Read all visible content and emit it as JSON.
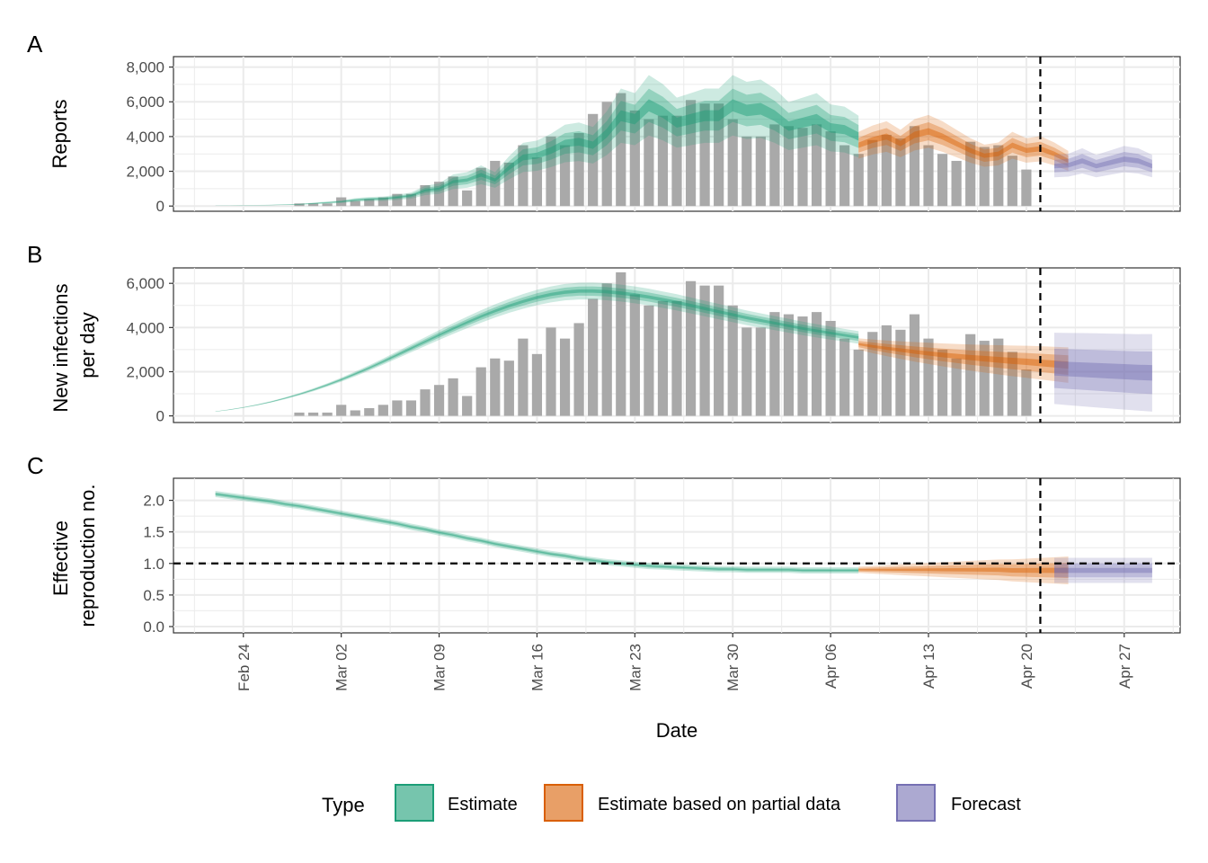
{
  "figure": {
    "xlabel": "Date",
    "date_range": [
      "2020-02-19",
      "2020-05-01"
    ],
    "x_ticks": [
      {
        "date": "2020-02-24",
        "label": "Feb 24"
      },
      {
        "date": "2020-03-02",
        "label": "Mar 02"
      },
      {
        "date": "2020-03-09",
        "label": "Mar 09"
      },
      {
        "date": "2020-03-16",
        "label": "Mar 16"
      },
      {
        "date": "2020-03-23",
        "label": "Mar 23"
      },
      {
        "date": "2020-03-30",
        "label": "Mar 30"
      },
      {
        "date": "2020-04-06",
        "label": "Apr 06"
      },
      {
        "date": "2020-04-13",
        "label": "Apr 13"
      },
      {
        "date": "2020-04-20",
        "label": "Apr 20"
      },
      {
        "date": "2020-04-27",
        "label": "Apr 27"
      }
    ],
    "vline_date": "2020-04-21",
    "colors": {
      "estimate": "#1b9e77",
      "partial": "#d95f02",
      "forecast": "#7570b3",
      "bars": "#a9a9a9",
      "grid": "#ebebeb"
    },
    "legend": {
      "title": "Type",
      "items": [
        {
          "key": "estimate",
          "label": "Estimate"
        },
        {
          "key": "partial",
          "label": "Estimate based on partial data"
        },
        {
          "key": "forecast",
          "label": "Forecast"
        }
      ]
    }
  },
  "chart_data": [
    {
      "panel": "A",
      "type": "bar+ribbon",
      "ylabel": [
        "Reports"
      ],
      "ylim": [
        -300,
        8600
      ],
      "yticks": [
        0,
        2000,
        4000,
        6000,
        8000
      ],
      "ytick_labels": [
        "0",
        "2,000",
        "4,000",
        "6,000",
        "8,000"
      ],
      "bars": {
        "start_date": "2020-02-28",
        "values": [
          150,
          150,
          150,
          500,
          300,
          400,
          500,
          700,
          700,
          1200,
          1400,
          1700,
          900,
          2200,
          2600,
          2500,
          3500,
          2800,
          4000,
          3500,
          4200,
          5300,
          6000,
          6500,
          5500,
          5000,
          5200,
          5200,
          6100,
          5900,
          5900,
          5000,
          4000,
          4000,
          4700,
          4600,
          4500,
          4700,
          4300,
          3500,
          3000,
          3800,
          4100,
          3900,
          4600,
          3500,
          3000,
          2600,
          3700,
          3400,
          3500,
          2900,
          2100
        ]
      },
      "series": [
        {
          "name": "Estimate",
          "type": "estimate",
          "start_date": "2020-02-22",
          "median": [
            20,
            30,
            40,
            50,
            60,
            80,
            100,
            150,
            200,
            250,
            350,
            400,
            420,
            500,
            600,
            900,
            1000,
            1400,
            1500,
            1800,
            1500,
            2200,
            2800,
            2900,
            3200,
            3600,
            3700,
            3500,
            4200,
            5200,
            5000,
            5800,
            5400,
            4800,
            5000,
            5200,
            5200,
            5800,
            5500,
            5600,
            5200,
            4600,
            4800,
            5000,
            4500,
            4400,
            4000
          ],
          "spread": 0.3
        },
        {
          "name": "Estimate based on partial data",
          "type": "partial",
          "start_date": "2020-04-08",
          "median": [
            3500,
            3800,
            4000,
            3600,
            4100,
            4300,
            4000,
            3600,
            3200,
            2900,
            3000,
            3500,
            3200,
            3300,
            3000,
            2600
          ],
          "spread": 0.22
        },
        {
          "name": "Forecast",
          "type": "forecast",
          "start_date": "2020-04-22",
          "median": [
            2300,
            2350,
            2600,
            2300,
            2500,
            2700,
            2600,
            2300
          ],
          "spread": 0.28
        }
      ]
    },
    {
      "panel": "B",
      "type": "bar+ribbon",
      "ylabel": [
        "New infections",
        "per day"
      ],
      "ylim": [
        -300,
        6700
      ],
      "yticks": [
        0,
        2000,
        4000,
        6000
      ],
      "ytick_labels": [
        "0",
        "2,000",
        "4,000",
        "6,000"
      ],
      "bars": {
        "start_date": "2020-02-28",
        "values": [
          150,
          150,
          150,
          500,
          250,
          350,
          500,
          700,
          700,
          1200,
          1400,
          1700,
          900,
          2200,
          2600,
          2500,
          3500,
          2800,
          4000,
          3500,
          4200,
          5300,
          6000,
          6500,
          5500,
          5000,
          5200,
          5200,
          6100,
          5900,
          5900,
          5000,
          4000,
          4000,
          4700,
          4600,
          4500,
          4700,
          4300,
          3500,
          3000,
          3800,
          4100,
          3900,
          4600,
          3500,
          3000,
          2600,
          3700,
          3400,
          3500,
          2900,
          2100
        ]
      },
      "series": [
        {
          "name": "Estimate",
          "type": "estimate",
          "start_date": "2020-02-22",
          "median": [
            200,
            280,
            380,
            500,
            640,
            800,
            980,
            1180,
            1400,
            1640,
            1900,
            2170,
            2460,
            2760,
            3060,
            3360,
            3660,
            3950,
            4230,
            4500,
            4750,
            4980,
            5180,
            5360,
            5500,
            5600,
            5650,
            5650,
            5620,
            5560,
            5480,
            5380,
            5260,
            5140,
            5000,
            4860,
            4720,
            4580,
            4440,
            4320,
            4200,
            4080,
            3960,
            3850,
            3750,
            3650,
            3550
          ],
          "spread_start": 0.05,
          "spread_end": 0.08
        },
        {
          "name": "Estimate based on partial data",
          "type": "partial",
          "start_date": "2020-04-08",
          "median": [
            3250,
            3150,
            3060,
            2980,
            2900,
            2830,
            2760,
            2700,
            2640,
            2590,
            2540,
            2490,
            2450,
            2400,
            2350,
            2300
          ],
          "spread_start": 0.08,
          "spread_end": 0.35
        },
        {
          "name": "Forecast",
          "type": "forecast",
          "start_date": "2020-04-22",
          "median": [
            2150,
            2120,
            2090,
            2060,
            2030,
            2000,
            1970,
            1950
          ],
          "spread_start": 0.75,
          "spread_end": 0.9
        }
      ]
    },
    {
      "panel": "C",
      "type": "ribbon",
      "ylabel": [
        "Effective",
        "reproduction no."
      ],
      "ylim": [
        -0.1,
        2.35
      ],
      "yticks": [
        0.0,
        0.5,
        1.0,
        1.5,
        2.0
      ],
      "ytick_labels": [
        "0.0",
        "0.5",
        "1.0",
        "1.5",
        "2.0"
      ],
      "hline": 1.0,
      "series": [
        {
          "name": "Estimate",
          "type": "estimate",
          "start_date": "2020-02-22",
          "median": [
            2.1,
            2.07,
            2.04,
            2.01,
            1.98,
            1.94,
            1.91,
            1.87,
            1.83,
            1.79,
            1.75,
            1.71,
            1.67,
            1.63,
            1.58,
            1.54,
            1.49,
            1.45,
            1.4,
            1.36,
            1.31,
            1.27,
            1.23,
            1.19,
            1.15,
            1.12,
            1.08,
            1.05,
            1.02,
            1.0,
            0.98,
            0.96,
            0.95,
            0.94,
            0.93,
            0.92,
            0.91,
            0.91,
            0.9,
            0.9,
            0.9,
            0.9,
            0.89,
            0.89,
            0.89,
            0.89,
            0.89
          ],
          "band": 0.05
        },
        {
          "name": "Estimate based on partial data",
          "type": "partial",
          "start_date": "2020-04-08",
          "median": [
            0.9,
            0.9,
            0.9,
            0.9,
            0.9,
            0.9,
            0.9,
            0.9,
            0.9,
            0.9,
            0.9,
            0.89,
            0.89,
            0.89,
            0.89,
            0.89
          ],
          "band_start": 0.05,
          "band_end": 0.22
        },
        {
          "name": "Forecast",
          "type": "forecast",
          "start_date": "2020-04-22",
          "median": [
            0.89,
            0.89,
            0.89,
            0.89,
            0.89,
            0.89,
            0.89,
            0.89
          ],
          "band_start": 0.2,
          "band_end": 0.2
        }
      ]
    }
  ]
}
